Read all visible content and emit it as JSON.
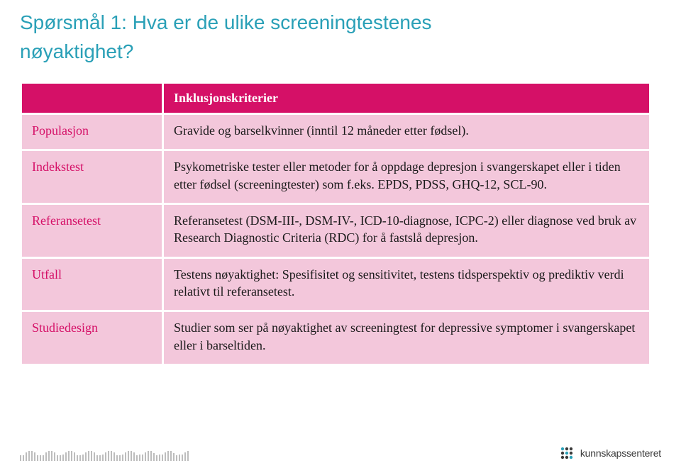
{
  "title_line1": "Spørsmål 1: Hva er de ulike screeningtestenes",
  "title_line2": "nøyaktighet?",
  "title_color": "#2aa0b7",
  "title_fontsize": 28,
  "table": {
    "header_bg": "#d51067",
    "header_fg": "#ffffff",
    "cell_bg": "#f3c7db",
    "label_fg": "#d51067",
    "content_fg": "#1a1a1a",
    "fontsize": 18,
    "header_left": "",
    "header_right": "Inklusjonskriterier",
    "rows": [
      {
        "label": "Populasjon",
        "content": "Gravide og barselkvinner (inntil 12 måneder etter fødsel)."
      },
      {
        "label": "Indekstest",
        "content": "Psykometriske tester eller metoder for å oppdage depresjon i svangerskapet eller i tiden etter fødsel (screeningtester) som f.eks. EPDS, PDSS, GHQ-12, SCL-90."
      },
      {
        "label": "Referansetest",
        "content": "Referansetest (DSM-III-, DSM-IV-, ICD-10-diagnose, ICPC-2) eller diagnose ved bruk av Research Diagnostic Criteria (RDC) for å fastslå depresjon."
      },
      {
        "label": "Utfall",
        "content": "Testens nøyaktighet: Spesifisitet og sensitivitet, testens tidsperspektiv og prediktiv verdi relativt til referansetest."
      },
      {
        "label": "Studiedesign",
        "content": "Studier som ser på nøyaktighet av screeningtest for depressive symptomer i svangerskapet eller i barseltiden."
      }
    ]
  },
  "footer": {
    "tick_color": "#bdbdbd",
    "logo_colors": {
      "teal": "#2aa0b7",
      "dark": "#3a3a3a"
    },
    "brand_text": "kunnskapssenteret"
  }
}
